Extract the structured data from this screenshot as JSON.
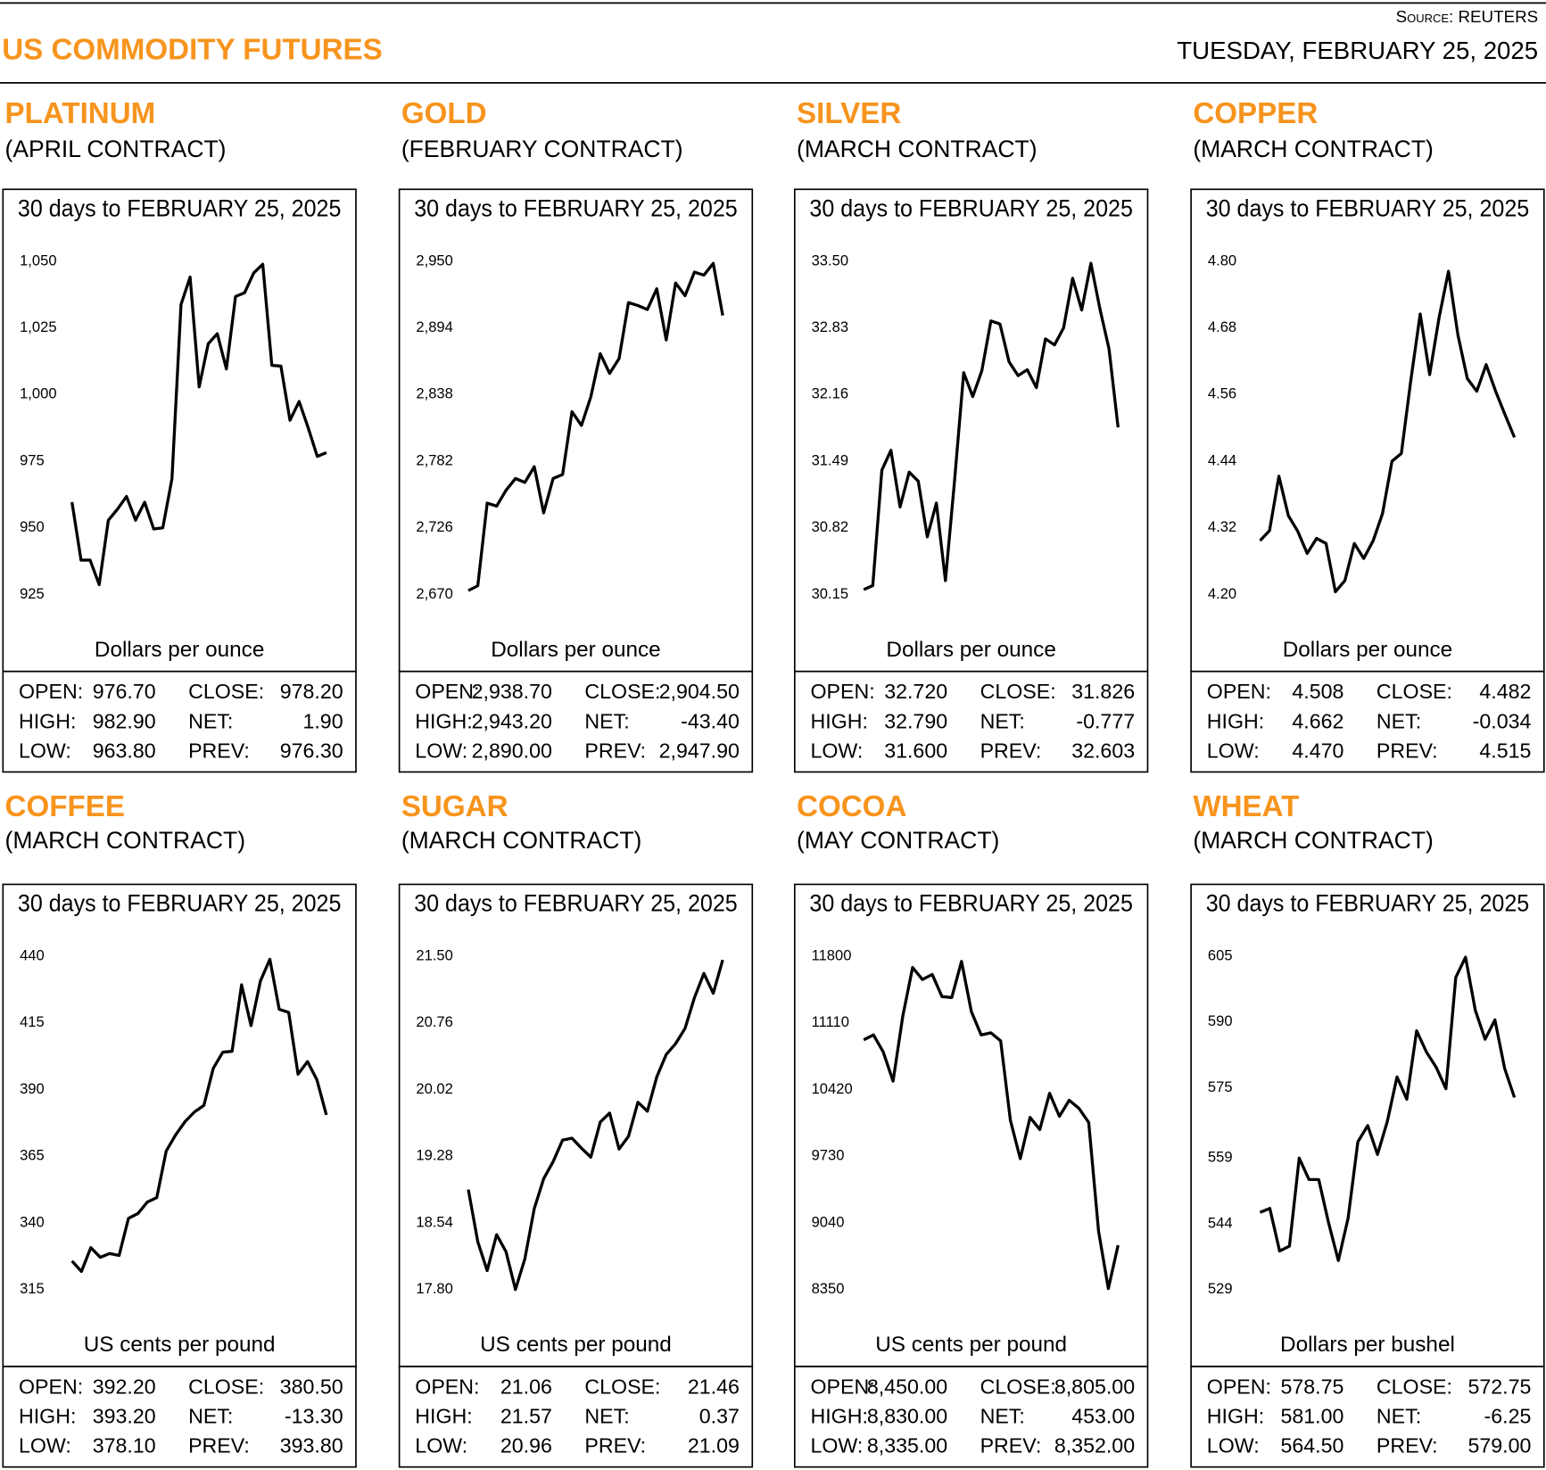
{
  "header": {
    "title": "US COMMODITY FUTURES",
    "source": "Source: REUTERS",
    "date": "TUESDAY, FEBRUARY 25, 2025"
  },
  "chart_data": [
    {
      "type": "line",
      "title": "PLATINUM",
      "subtitle": "(APRIL CONTRACT)",
      "period": "30 days to FEBRUARY 25, 2025",
      "y_label": "Dollars per ounce",
      "color": "#000000",
      "values": [
        959.6,
        937.9,
        937.9,
        928.7,
        952.9,
        957,
        961.8,
        952.9,
        959.6,
        949.6,
        950,
        968.4,
        1033.8,
        1044.1,
        1002.9,
        1019.1,
        1022.8,
        1009.6,
        1036.8,
        1038.2,
        1045.6,
        1048.9,
        1011,
        1010.7,
        990.4,
        997.4,
        987.5,
        976.8,
        978.2
      ],
      "ylim": [
        925,
        1050
      ],
      "yticks": [
        925,
        950,
        975,
        {
          "value": 1000,
          "label": "1,000"
        },
        {
          "value": 1025,
          "label": "1,025"
        },
        {
          "value": 1050,
          "label": "1,050"
        }
      ],
      "stats": [
        {
          "label": "OPEN:",
          "value": "976.70"
        },
        {
          "label": "HIGH:",
          "value": "982.90"
        },
        {
          "label": "LOW:",
          "value": "963.80"
        },
        {
          "label": "CLOSE:",
          "value": "978.20"
        },
        {
          "label": "NET:",
          "value": "1.90"
        },
        {
          "label": "PREV:",
          "value": "976.30"
        }
      ]
    },
    {
      "type": "line",
      "title": "GOLD",
      "subtitle": "(FEBRUARY CONTRACT)",
      "period": "30 days to FEBRUARY 25, 2025",
      "y_label": "Dollars per ounce",
      "color": "#000000",
      "values": [
        2673.3,
        2677.4,
        2746.8,
        2744.3,
        2757.6,
        2767.5,
        2764.2,
        2777.4,
        2738.6,
        2767.5,
        2770.8,
        2823.6,
        2812.1,
        2836,
        2872.4,
        2855.8,
        2868.2,
        2915.3,
        2912.8,
        2909.5,
        2926.9,
        2883.9,
        2931.8,
        2921.1,
        2940.9,
        2938.4,
        2948.3,
        2904.5
      ],
      "ylim": [
        2670,
        2950
      ],
      "yticks": [
        {
          "value": 2670,
          "label": "2,670"
        },
        {
          "value": 2726,
          "label": "2,726"
        },
        {
          "value": 2782,
          "label": "2,782"
        },
        {
          "value": 2838,
          "label": "2,838"
        },
        {
          "value": 2894,
          "label": "2,894"
        },
        {
          "value": 2950,
          "label": "2,950"
        }
      ],
      "stats": [
        {
          "label": "OPEN:",
          "value": "2,938.70"
        },
        {
          "label": "HIGH:",
          "value": "2,943.20"
        },
        {
          "label": "LOW:",
          "value": "2,890.00"
        },
        {
          "label": "CLOSE:",
          "value": "2,904.50"
        },
        {
          "label": "NET:",
          "value": "-43.40"
        },
        {
          "label": "PREV:",
          "value": "2,947.90"
        }
      ]
    },
    {
      "type": "line",
      "title": "SILVER",
      "subtitle": "(MARCH CONTRACT)",
      "period": "30 days to FEBRUARY 25, 2025",
      "y_label": "Dollars per ounce",
      "color": "#000000",
      "values": [
        30.2,
        30.24,
        31.4,
        31.6,
        31.03,
        31.38,
        31.29,
        30.73,
        31.07,
        30.29,
        31.29,
        32.38,
        32.14,
        32.4,
        32.9,
        32.87,
        32.49,
        32.35,
        32.41,
        32.23,
        32.72,
        32.66,
        32.83,
        33.33,
        33.01,
        33.48,
        33.02,
        32.62,
        31.83
      ],
      "ylim": [
        30.15,
        33.5
      ],
      "yticks": [
        30.15,
        30.82,
        31.49,
        32.16,
        32.83,
        {
          "value": 33.5,
          "label": "33.50"
        }
      ],
      "stats": [
        {
          "label": "OPEN:",
          "value": "32.720"
        },
        {
          "label": "HIGH:",
          "value": "32.790"
        },
        {
          "label": "LOW:",
          "value": "31.600"
        },
        {
          "label": "CLOSE:",
          "value": "31.826"
        },
        {
          "label": "NET:",
          "value": "-0.777"
        },
        {
          "label": "PREV:",
          "value": "32.603"
        }
      ]
    },
    {
      "type": "line",
      "title": "COPPER",
      "subtitle": "(MARCH CONTRACT)",
      "period": "30 days to FEBRUARY 25, 2025",
      "y_label": "Dollars per ounce",
      "color": "#000000",
      "values": [
        4.297,
        4.315,
        4.413,
        4.342,
        4.314,
        4.274,
        4.301,
        4.292,
        4.205,
        4.225,
        4.292,
        4.265,
        4.297,
        4.346,
        4.44,
        4.454,
        4.586,
        4.705,
        4.596,
        4.699,
        4.782,
        4.667,
        4.589,
        4.566,
        4.614,
        4.566,
        4.524,
        4.483
      ],
      "ylim": [
        4.2,
        4.8
      ],
      "yticks": [
        {
          "value": 4.2,
          "label": "4.20"
        },
        4.32,
        4.44,
        4.56,
        4.68,
        {
          "value": 4.8,
          "label": "4.80"
        }
      ],
      "stats": [
        {
          "label": "OPEN:",
          "value": "4.508"
        },
        {
          "label": "HIGH:",
          "value": "4.662"
        },
        {
          "label": "LOW:",
          "value": "4.470"
        },
        {
          "label": "CLOSE:",
          "value": "4.482"
        },
        {
          "label": "NET:",
          "value": "-0.034"
        },
        {
          "label": "PREV:",
          "value": "4.515"
        }
      ]
    },
    {
      "type": "line",
      "title": "COFFEE",
      "subtitle": "(MARCH CONTRACT)",
      "period": "30 days to FEBRUARY 25, 2025",
      "y_label": "US cents per pound",
      "color": "#000000",
      "values": [
        325.7,
        321.8,
        330.7,
        327.1,
        328.5,
        327.8,
        341.7,
        343.5,
        347.8,
        349.5,
        367,
        373,
        378,
        381.6,
        384.1,
        398,
        404,
        404.4,
        429.3,
        414,
        430.7,
        438.9,
        420.1,
        419,
        395.8,
        400.5,
        393.7,
        380.5
      ],
      "ylim": [
        315,
        440
      ],
      "yticks": [
        315,
        340,
        365,
        390,
        415,
        440
      ],
      "stats": [
        {
          "label": "OPEN:",
          "value": "392.20"
        },
        {
          "label": "HIGH:",
          "value": "393.20"
        },
        {
          "label": "LOW:",
          "value": "378.10"
        },
        {
          "label": "CLOSE:",
          "value": "380.50"
        },
        {
          "label": "NET:",
          "value": "-13.30"
        },
        {
          "label": "PREV:",
          "value": "393.80"
        }
      ]
    },
    {
      "type": "line",
      "title": "SUGAR",
      "subtitle": "(MARCH CONTRACT)",
      "period": "30 days to FEBRUARY 25, 2025",
      "y_label": "US cents per pound",
      "color": "#000000",
      "values": [
        18.91,
        18.33,
        18.01,
        18.41,
        18.22,
        17.8,
        18.14,
        18.7,
        19.03,
        19.22,
        19.46,
        19.48,
        19.37,
        19.27,
        19.66,
        19.76,
        19.36,
        19.5,
        19.88,
        19.78,
        20.16,
        20.41,
        20.53,
        20.7,
        21.04,
        21.31,
        21.09,
        21.46
      ],
      "ylim": [
        17.8,
        21.5
      ],
      "yticks": [
        {
          "value": 17.8,
          "label": "17.80"
        },
        18.54,
        19.28,
        20.02,
        20.76,
        {
          "value": 21.5,
          "label": "21.50"
        }
      ],
      "stats": [
        {
          "label": "OPEN:",
          "value": "21.06"
        },
        {
          "label": "HIGH:",
          "value": "21.57"
        },
        {
          "label": "LOW:",
          "value": "20.96"
        },
        {
          "label": "CLOSE:",
          "value": "21.46"
        },
        {
          "label": "NET:",
          "value": "0.37"
        },
        {
          "label": "PREV:",
          "value": "21.09"
        }
      ]
    },
    {
      "type": "line",
      "title": "COCOA",
      "subtitle": "(MAY CONTRACT)",
      "period": "30 days to FEBRUARY 25, 2025",
      "y_label": "US cents per pound",
      "color": "#000000",
      "values": [
        10935,
        10987,
        10810,
        10508,
        11185,
        11685,
        11560,
        11612,
        11383,
        11373,
        11748,
        11227,
        10987,
        11008,
        10924,
        10101,
        9705,
        10132,
        10007,
        10382,
        10143,
        10310,
        10226,
        10080,
        8954,
        8360,
        8809
      ],
      "ylim": [
        8350,
        11800
      ],
      "yticks": [
        8350,
        9040,
        9730,
        10420,
        11110,
        11800
      ],
      "stats": [
        {
          "label": "OPEN:",
          "value": "8,450.00"
        },
        {
          "label": "HIGH:",
          "value": "8,830.00"
        },
        {
          "label": "LOW:",
          "value": "8,335.00"
        },
        {
          "label": "CLOSE:",
          "value": "8,805.00"
        },
        {
          "label": "NET:",
          "value": "453.00"
        },
        {
          "label": "PREV:",
          "value": "8,352.00"
        }
      ]
    },
    {
      "type": "line",
      "title": "WHEAT",
      "subtitle": "(MARCH CONTRACT)",
      "period": "30 days to FEBRUARY 25, 2025",
      "y_label": "Dollars per bushel",
      "color": "#000000",
      "values": [
        546.6,
        547.5,
        537.8,
        538.9,
        559,
        554.1,
        554.1,
        544.2,
        535.6,
        545.3,
        562.7,
        566.4,
        559.8,
        567.3,
        577.5,
        572.4,
        588,
        583.2,
        579.7,
        574.8,
        600.2,
        604.8,
        592.7,
        586.1,
        590.5,
        579.4,
        572.8
      ],
      "ylim": [
        529,
        605
      ],
      "yticks": [
        529,
        544,
        559,
        575,
        590,
        605
      ],
      "stats": [
        {
          "label": "OPEN:",
          "value": "578.75"
        },
        {
          "label": "HIGH:",
          "value": "581.00"
        },
        {
          "label": "LOW:",
          "value": "564.50"
        },
        {
          "label": "CLOSE:",
          "value": "572.75"
        },
        {
          "label": "NET:",
          "value": "-6.25"
        },
        {
          "label": "PREV:",
          "value": "579.00"
        }
      ]
    }
  ]
}
